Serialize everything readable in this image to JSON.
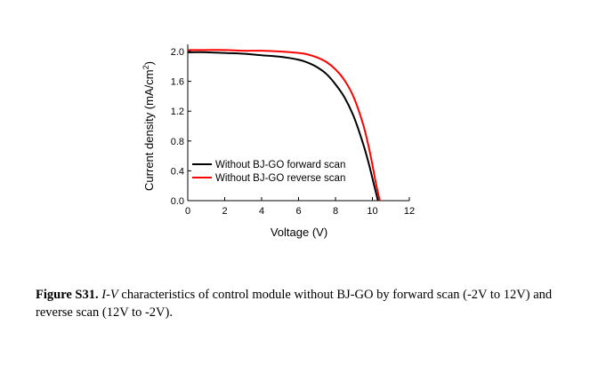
{
  "chart_data": {
    "type": "line",
    "xlabel": "Voltage (V)",
    "ylabel": "Current density (mA/cm²)",
    "ylabel_main": "Current density (mA/cm",
    "ylabel_sup": "2",
    "ylabel_end": ")",
    "xlim": [
      0,
      12
    ],
    "ylim": [
      0,
      2.0
    ],
    "xticks": [
      "0",
      "2",
      "4",
      "6",
      "8",
      "10",
      "12"
    ],
    "yticks": [
      "0.0",
      "0.4",
      "0.8",
      "1.2",
      "1.6",
      "2.0"
    ],
    "xtick_values": [
      0,
      2,
      4,
      6,
      8,
      10,
      12
    ],
    "ytick_values": [
      0,
      0.4,
      0.8,
      1.2,
      1.6,
      2.0
    ],
    "grid": false,
    "legend_position": "lower-left",
    "series": [
      {
        "name": "Without BJ-GO forward scan",
        "color": "#000000",
        "x": [
          0,
          1,
          2,
          3,
          4,
          5,
          6,
          6.5,
          7,
          7.5,
          8,
          8.5,
          9,
          9.5,
          9.8,
          10,
          10.2,
          10.3
        ],
        "y": [
          1.99,
          1.99,
          1.98,
          1.97,
          1.95,
          1.93,
          1.89,
          1.85,
          1.79,
          1.7,
          1.56,
          1.38,
          1.12,
          0.76,
          0.5,
          0.3,
          0.1,
          0.0
        ]
      },
      {
        "name": "Without BJ-GO reverse scan",
        "color": "#ff0000",
        "x": [
          0,
          1,
          2,
          3,
          4,
          5,
          6,
          6.5,
          7,
          7.5,
          8,
          8.5,
          9,
          9.5,
          9.8,
          10,
          10.2,
          10.4
        ],
        "y": [
          2.02,
          2.02,
          2.02,
          2.01,
          2.01,
          2.0,
          1.98,
          1.96,
          1.92,
          1.86,
          1.76,
          1.61,
          1.38,
          1.02,
          0.72,
          0.48,
          0.22,
          0.0
        ]
      }
    ]
  },
  "caption": {
    "label": "Figure S31.",
    "iv": "I-V",
    "text": " characteristics of control module without BJ-GO by forward scan (-2V to 12V) and reverse scan (12V to -2V)."
  }
}
